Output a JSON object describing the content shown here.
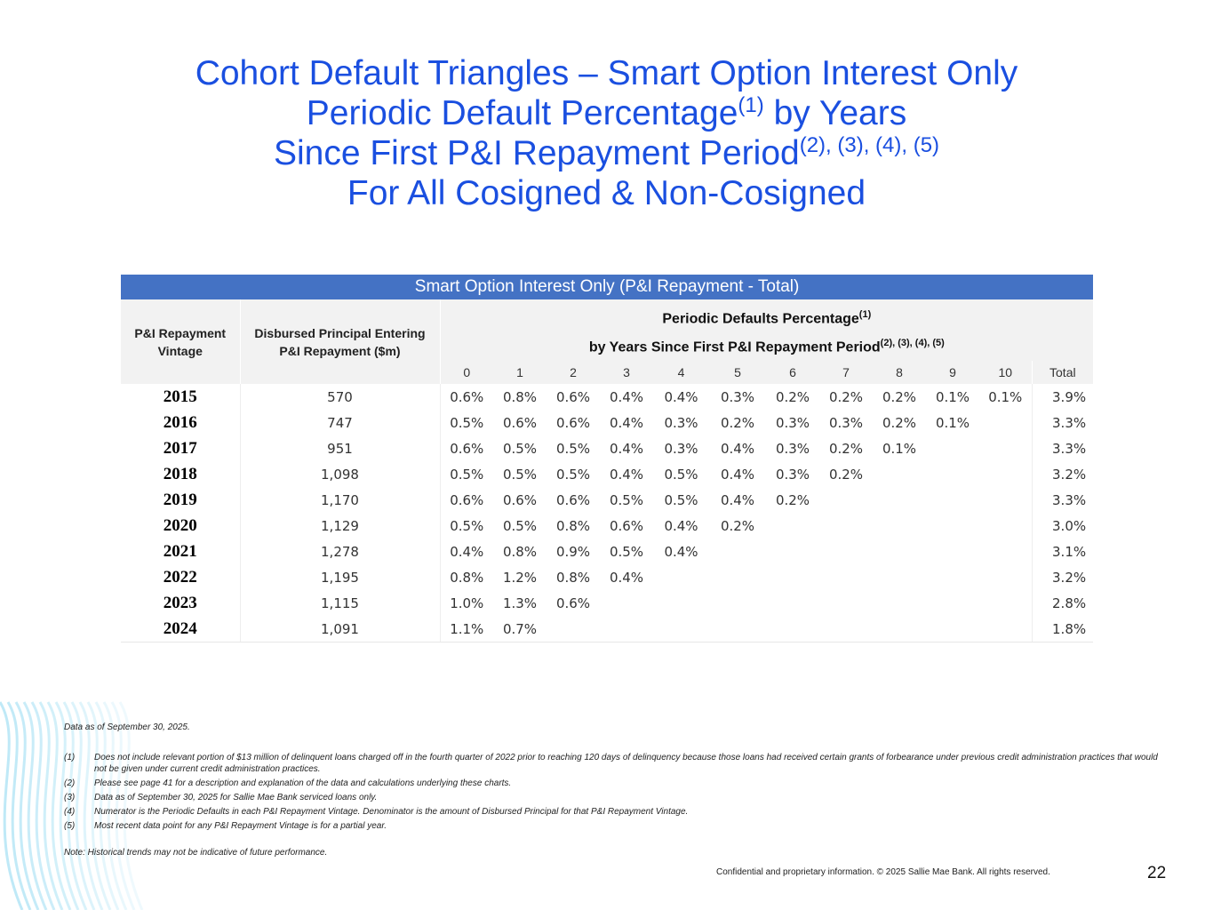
{
  "title": {
    "line1": "Cohort Default Triangles – Smart Option Interest Only",
    "line2": "Periodic Default Percentage",
    "line2_sup": "(1)",
    "line2_end": " by Years",
    "line3": "Since First P&I Repayment Period",
    "line3_sup": "(2), (3), (4), (5)",
    "line4": "For All Cosigned & Non-Cosigned"
  },
  "table": {
    "band_title": "Smart Option Interest Only (P&I Repayment - Total)",
    "col_vintage": "P&I Repayment Vintage",
    "col_principal": "Disbursed Principal Entering P&I Repayment ($m)",
    "periodic_line1": "Periodic Defaults Percentage",
    "periodic_line1_sup": "(1)",
    "periodic_line2": "by Years Since First P&I Repayment Period",
    "periodic_line2_sup": "(2), (3), (4), (5)",
    "years": [
      "0",
      "1",
      "2",
      "3",
      "4",
      "5",
      "6",
      "7",
      "8",
      "9",
      "10"
    ],
    "total_label": "Total",
    "rows": [
      {
        "vintage": "2015",
        "principal": "570",
        "values": [
          "0.6%",
          "0.8%",
          "0.6%",
          "0.4%",
          "0.4%",
          "0.3%",
          "0.2%",
          "0.2%",
          "0.2%",
          "0.1%",
          "0.1%"
        ],
        "total": "3.9%"
      },
      {
        "vintage": "2016",
        "principal": "747",
        "values": [
          "0.5%",
          "0.6%",
          "0.6%",
          "0.4%",
          "0.3%",
          "0.2%",
          "0.3%",
          "0.3%",
          "0.2%",
          "0.1%"
        ],
        "total": "3.3%"
      },
      {
        "vintage": "2017",
        "principal": "951",
        "values": [
          "0.6%",
          "0.5%",
          "0.5%",
          "0.4%",
          "0.3%",
          "0.4%",
          "0.3%",
          "0.2%",
          "0.1%"
        ],
        "total": "3.3%"
      },
      {
        "vintage": "2018",
        "principal": "1,098",
        "values": [
          "0.5%",
          "0.5%",
          "0.5%",
          "0.4%",
          "0.5%",
          "0.4%",
          "0.3%",
          "0.2%"
        ],
        "total": "3.2%"
      },
      {
        "vintage": "2019",
        "principal": "1,170",
        "values": [
          "0.6%",
          "0.6%",
          "0.6%",
          "0.5%",
          "0.5%",
          "0.4%",
          "0.2%"
        ],
        "total": "3.3%"
      },
      {
        "vintage": "2020",
        "principal": "1,129",
        "values": [
          "0.5%",
          "0.5%",
          "0.8%",
          "0.6%",
          "0.4%",
          "0.2%"
        ],
        "total": "3.0%"
      },
      {
        "vintage": "2021",
        "principal": "1,278",
        "values": [
          "0.4%",
          "0.8%",
          "0.9%",
          "0.5%",
          "0.4%"
        ],
        "total": "3.1%"
      },
      {
        "vintage": "2022",
        "principal": "1,195",
        "values": [
          "0.8%",
          "1.2%",
          "0.8%",
          "0.4%"
        ],
        "total": "3.2%"
      },
      {
        "vintage": "2023",
        "principal": "1,115",
        "values": [
          "1.0%",
          "1.3%",
          "0.6%"
        ],
        "total": "2.8%"
      },
      {
        "vintage": "2024",
        "principal": "1,091",
        "values": [
          "1.1%",
          "0.7%"
        ],
        "total": "1.8%"
      }
    ]
  },
  "notes": {
    "data_as_of": "Data as of September 30, 2025.",
    "footnotes": [
      {
        "key": "(1)",
        "text": "Does not include relevant portion of $13 million of delinquent loans charged off in the fourth quarter of 2022 prior to reaching 120 days of delinquency because those loans had received certain grants of forbearance under previous credit administration practices that would not be given under current credit administration practices."
      },
      {
        "key": "(2)",
        "text": "Please see page 41 for a description and explanation of the data and calculations underlying these charts."
      },
      {
        "key": "(3)",
        "text": "Data as of September 30, 2025 for Sallie Mae Bank serviced loans only."
      },
      {
        "key": "(4)",
        "text": "Numerator is the Periodic Defaults in each P&I Repayment Vintage. Denominator is the amount of Disbursed Principal for that P&I Repayment Vintage."
      },
      {
        "key": "(5)",
        "text": "Most recent data point for any P&I Repayment Vintage is for a partial year."
      }
    ],
    "disclaimer": "Note: Historical trends may not be indicative of future performance."
  },
  "footer": {
    "confidential": "Confidential and proprietary information. © 2025 Sallie Mae Bank. All rights reserved.",
    "page_number": "22"
  },
  "colors": {
    "title": "#1a4fe0",
    "band": "#4472c4",
    "header_bg": "#f2f2f2",
    "waves": "#bfe9f7"
  }
}
